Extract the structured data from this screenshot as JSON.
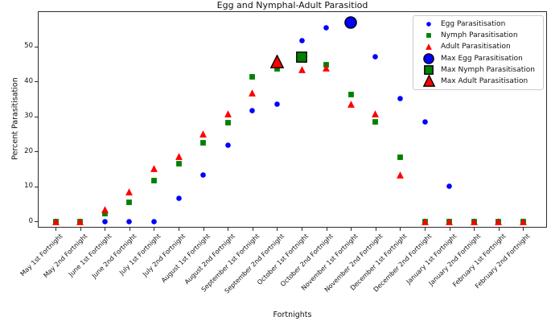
{
  "figure": {
    "title": "Egg and Nymphal-Adult Parasitiod",
    "xlabel": "Fortnights",
    "ylabel": "Percent Parasitisation"
  },
  "chart_data": {
    "type": "scatter",
    "title": "Egg and Nymphal-Adult Parasitiod",
    "xlabel": "Fortnights",
    "ylabel": "Percent Parasitisation",
    "ylim": [
      -1.8,
      60
    ],
    "yticks": [
      0,
      10,
      20,
      30,
      40,
      50
    ],
    "grid": false,
    "legend_position": "upper right",
    "categories": [
      "May 1st Fortnight",
      "May 2nd Fortnight",
      "June 1st Fortnight",
      "June 2nd Fortnight",
      "July 1st Fortnight",
      "July 2nd Fortnight",
      "August 1st Fortnight",
      "August 2nd Fortnight",
      "September 1st Fortnight",
      "September 2nd Fortnight",
      "October 1st Fortnight",
      "October 2nd Fortnight",
      "November 1st Fortnight",
      "November 2nd Fortnight",
      "December 1st Fortnight",
      "December 2nd Fortnight",
      "January 1st Fortnight",
      "January 2nd Fortnight",
      "February 1st Fortnight",
      "February 2nd Fortnight"
    ],
    "series": [
      {
        "name": "Egg Parasitisation",
        "marker": "circle",
        "color": "#0000ff",
        "values": [
          0,
          0,
          0,
          0,
          0,
          6.6,
          13.2,
          21.7,
          31.7,
          33.4,
          51.5,
          55.2,
          56.8,
          46.9,
          35.1,
          28.3,
          10,
          0,
          0,
          0
        ]
      },
      {
        "name": "Nymph Parasitisation",
        "marker": "square",
        "color": "#008000",
        "values": [
          0,
          0,
          2.1,
          5.5,
          11.6,
          16.5,
          22.3,
          28.2,
          41.2,
          43.6,
          46.8,
          44.8,
          36.2,
          28.4,
          18.2,
          0,
          0,
          0,
          0,
          0
        ]
      },
      {
        "name": "Adult Parasitisation",
        "marker": "triangle",
        "color": "#ff0000",
        "values": [
          0,
          0,
          3.3,
          8.3,
          15,
          18.4,
          25,
          30.6,
          36.6,
          45.6,
          43.4,
          43.8,
          33.4,
          30.6,
          13.2,
          0,
          0,
          0,
          0,
          0
        ]
      }
    ],
    "max_points": [
      {
        "name": "Max Egg Parasitisation",
        "marker": "circle",
        "color": "#0000ff",
        "edge": "#000000",
        "category": "November 1st Fortnight",
        "x_index": 12,
        "value": 56.8
      },
      {
        "name": "Max Nymph Parasitisation",
        "marker": "square",
        "color": "#008000",
        "edge": "#000000",
        "category": "October 1st Fortnight",
        "x_index": 10,
        "value": 46.8
      },
      {
        "name": "Max Adult Parasitisation",
        "marker": "triangle",
        "color": "#ff0000",
        "edge": "#000000",
        "category": "September 2nd Fortnight",
        "x_index": 9,
        "value": 45.6
      }
    ],
    "legend": [
      {
        "label": "Egg Parasitisation",
        "marker": "circle",
        "color": "#0000ff",
        "size": "small"
      },
      {
        "label": "Nymph Parasitisation",
        "marker": "square",
        "color": "#008000",
        "size": "small"
      },
      {
        "label": "Adult Parasitisation",
        "marker": "triangle",
        "color": "#ff0000",
        "size": "small"
      },
      {
        "label": "Max Egg Parasitisation",
        "marker": "circle",
        "color": "#0000ff",
        "size": "large"
      },
      {
        "label": "Max Nymph Parasitisation",
        "marker": "square",
        "color": "#008000",
        "size": "large"
      },
      {
        "label": "Max Adult Parasitisation",
        "marker": "triangle",
        "color": "#ff0000",
        "size": "large"
      }
    ]
  }
}
